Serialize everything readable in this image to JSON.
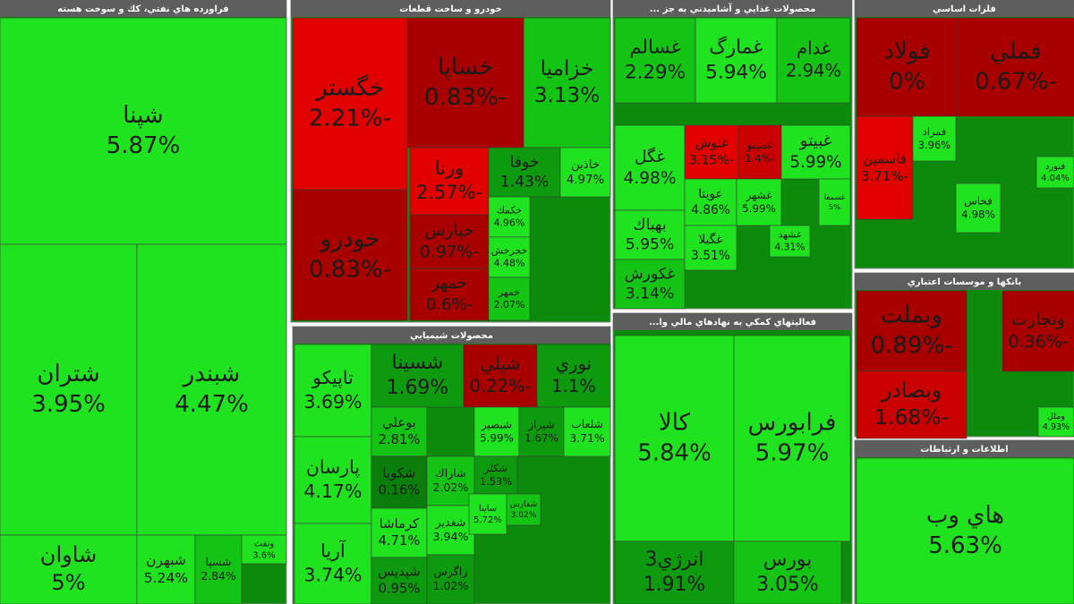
{
  "sectors": [
    {
      "title": "فراورده هاي نفتي، كك و سوخت هسته",
      "cells": [
        {
          "name": "شپنا",
          "change": "5.87%"
        },
        {
          "name": "شتران",
          "change": "3.95%"
        },
        {
          "name": "شبندر",
          "change": "4.47%"
        },
        {
          "name": "شاوان",
          "change": "5%"
        },
        {
          "name": "شبهرن",
          "change": "5.24%"
        },
        {
          "name": "شسپا",
          "change": "2.84%"
        },
        {
          "name": "ونفت",
          "change": "3.6%"
        }
      ]
    },
    {
      "title": "خودرو و ساخت قطعات",
      "cells": [
        {
          "name": "خزاميا",
          "change": "3.13%"
        },
        {
          "name": "خساپا",
          "change": "-0.83%"
        },
        {
          "name": "خگستر",
          "change": "-2.21%"
        },
        {
          "name": "خودرو",
          "change": "-0.83%"
        },
        {
          "name": "ورنا",
          "change": "-2.57%"
        },
        {
          "name": "خپارس",
          "change": "-0.97%"
        },
        {
          "name": "خمهر",
          "change": "-0.6%"
        },
        {
          "name": "خوفا",
          "change": "1.43%"
        },
        {
          "name": "خاذين",
          "change": "4.97%"
        },
        {
          "name": "خكمك",
          "change": "4.96%"
        },
        {
          "name": "خچرخش",
          "change": "4.48%"
        },
        {
          "name": "خمهر",
          "change": "2.07%"
        }
      ]
    },
    {
      "title": "محصولات شيميايي",
      "cells": [
        {
          "name": "تاپيكو",
          "change": "3.69%"
        },
        {
          "name": "پارسان",
          "change": "4.17%"
        },
        {
          "name": "آريا",
          "change": "3.74%"
        },
        {
          "name": "شسينا",
          "change": "1.69%"
        },
        {
          "name": "شپلي",
          "change": "-0.22%"
        },
        {
          "name": "نوري",
          "change": "1.1%"
        },
        {
          "name": "بوعلي",
          "change": "2.81%"
        },
        {
          "name": "شبصير",
          "change": "5.99%"
        },
        {
          "name": "شيراز",
          "change": "1.67%"
        },
        {
          "name": "شلعاب",
          "change": "3.71%"
        },
        {
          "name": "شكويا",
          "change": "0.16%"
        },
        {
          "name": "كرماشا",
          "change": "4.71%"
        },
        {
          "name": "شاراك",
          "change": "2.02%"
        },
        {
          "name": "شغدير",
          "change": "3.94%"
        },
        {
          "name": "شكلر",
          "change": "1.53%"
        },
        {
          "name": "ساينا",
          "change": "5.72%"
        },
        {
          "name": "شفارس",
          "change": "3.02%"
        },
        {
          "name": "زاگرس",
          "change": "1.02%"
        },
        {
          "name": "شپديس",
          "change": "0.95%"
        }
      ]
    },
    {
      "title": "محصولات غذايي و آشاميدني به جز ...",
      "cells": [
        {
          "name": "غسالم",
          "change": "2.29%"
        },
        {
          "name": "غمارگ",
          "change": "5.94%"
        },
        {
          "name": "غدام",
          "change": "2.94%"
        },
        {
          "name": "غگل",
          "change": "4.98%"
        },
        {
          "name": "بهباك",
          "change": "5.95%"
        },
        {
          "name": "غكورش",
          "change": "3.14%"
        },
        {
          "name": "غنوش",
          "change": "-3.15%"
        },
        {
          "name": "غصينو",
          "change": "-1.4%"
        },
        {
          "name": "غبيتو",
          "change": "5.99%"
        },
        {
          "name": "عويتا",
          "change": "4.86%"
        },
        {
          "name": "غشهر",
          "change": "5.99%"
        },
        {
          "name": "غسمفا",
          "change": "5%"
        },
        {
          "name": "غگيلا",
          "change": "3.51%"
        },
        {
          "name": "غشهد",
          "change": "4.31%"
        }
      ]
    },
    {
      "title": "فعاليتهاي كمكي به نهادهاي مالي وا...",
      "cells": [
        {
          "name": "كالا",
          "change": "5.84%"
        },
        {
          "name": "فرابورس",
          "change": "5.97%"
        },
        {
          "name": "انرژي3",
          "change": "1.91%"
        },
        {
          "name": "بورس",
          "change": "3.05%"
        }
      ]
    },
    {
      "title": "فلزات اساسي",
      "cells": [
        {
          "name": "فولاد",
          "change": "0%"
        },
        {
          "name": "فملي",
          "change": "-0.67%"
        },
        {
          "name": "فاسمين",
          "change": "-3.71%"
        },
        {
          "name": "فمراد",
          "change": "3.96%"
        },
        {
          "name": "فخاس",
          "change": "4.98%"
        },
        {
          "name": "فنورد",
          "change": "4.04%"
        }
      ]
    },
    {
      "title": "بانكها و موسسات اعتباري",
      "cells": [
        {
          "name": "وبملت",
          "change": "-0.89%"
        },
        {
          "name": "وتجارت",
          "change": "-0.36%"
        },
        {
          "name": "وبصادر",
          "change": "-1.68%"
        },
        {
          "name": "وملل",
          "change": "4.93%"
        }
      ]
    },
    {
      "title": "اطلاعات و ارتباطات",
      "cells": [
        {
          "name": "هاي وب",
          "change": "5.63%"
        }
      ]
    }
  ]
}
